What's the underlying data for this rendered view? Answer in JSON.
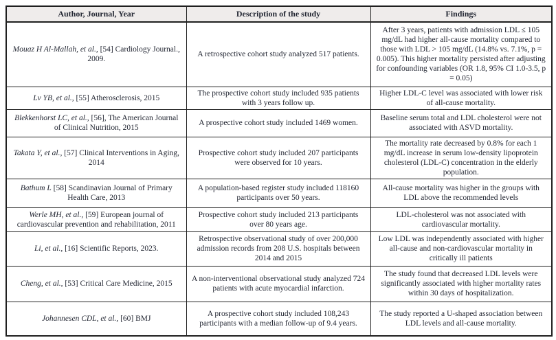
{
  "colors": {
    "border": "#1f1f1f",
    "text": "#232733",
    "header_bg": "#efeceb"
  },
  "table": {
    "columns": {
      "author": "Author, Journal, Year",
      "description": "Description of the study",
      "findings": "Findings"
    },
    "rows": [
      {
        "author_italic": "Mouaz H Al-Mallah, et al.,",
        "author_rest": "[54] Cardiology Journal., 2009.",
        "description": "A retrospective cohort study analyzed 517 patients.",
        "findings": "After 3 years, patients with admission LDL ≤ 105 mg/dL had higher all-cause mortality compared to those with LDL > 105 mg/dL (14.8% vs. 7.1%, p = 0.005). This higher mortality persisted after adjusting for confounding variables (OR 1.8, 95% CI 1.0-3.5, p = 0.05)"
      },
      {
        "author_italic": "Lv YB, et al.,",
        "author_rest": "[55] Atherosclerosis, 2015",
        "description": "The prospective cohort study included 935 patients with 3 years follow up.",
        "findings": "Higher LDL-C level was associated with lower risk of all-cause mortality."
      },
      {
        "author_italic": "Blekkenhorst LC, et al.,",
        "author_rest": "[56], The American Journal of Clinical Nutrition, 2015",
        "description": "A prospective cohort study included 1469 women.",
        "findings": "Baseline serum total and LDL cholesterol were not associated with ASVD mortality."
      },
      {
        "author_italic": "Takata Y, et al.,",
        "author_rest": "[57] Clinical Interventions in Aging, 2014",
        "description": "Prospective cohort study included 207 participants were observed for 10 years.",
        "findings": "The mortality rate decreased by 0.8% for each 1 mg/dL increase in serum low-density lipoprotein cholesterol (LDL-C) concentration in the elderly population."
      },
      {
        "author_italic": "Bathum L",
        "author_rest": "[58] Scandinavian Journal of Primary Health Care, 2013",
        "description": "A population-based register study included 118160 participants over 50 years.",
        "findings": "All-cause mortality was higher in the groups with LDL above the recommended levels"
      },
      {
        "author_italic": "Werle MH, et al.,",
        "author_rest": "[59] European journal of cardiovascular prevention and rehabilitation, 2011",
        "description": "Prospective cohort study included 213 participants over 80 years age.",
        "findings": "LDL-cholesterol was not associated with cardiovascular mortality."
      },
      {
        "author_italic": "Li, et al.,",
        "author_rest": "[16] Scientific Reports, 2023.",
        "description": "Retrospective observational study of over 200,000 admission records from 208 U.S. hospitals between 2014 and 2015",
        "findings": "Low LDL was independently associated with higher all-cause and non-cardiovascular mortality in critically ill patients"
      },
      {
        "author_italic": "Cheng, et al.,",
        "author_rest": "[53] Critical Care Medicine, 2015",
        "description": "A non-interventional observational study analyzed 724 patients with acute myocardial infarction.",
        "findings": "The study found that decreased LDL levels were significantly associated with higher mortality rates within 30 days of hospitalization."
      },
      {
        "author_italic": "Johannesen CDL, et al.,",
        "author_rest": "[60] BMJ",
        "description": "A prospective cohort study included 108,243 participants with a median follow-up of 9.4 years.",
        "findings": "The study reported a U-shaped association between LDL levels and all-cause mortality."
      }
    ]
  }
}
